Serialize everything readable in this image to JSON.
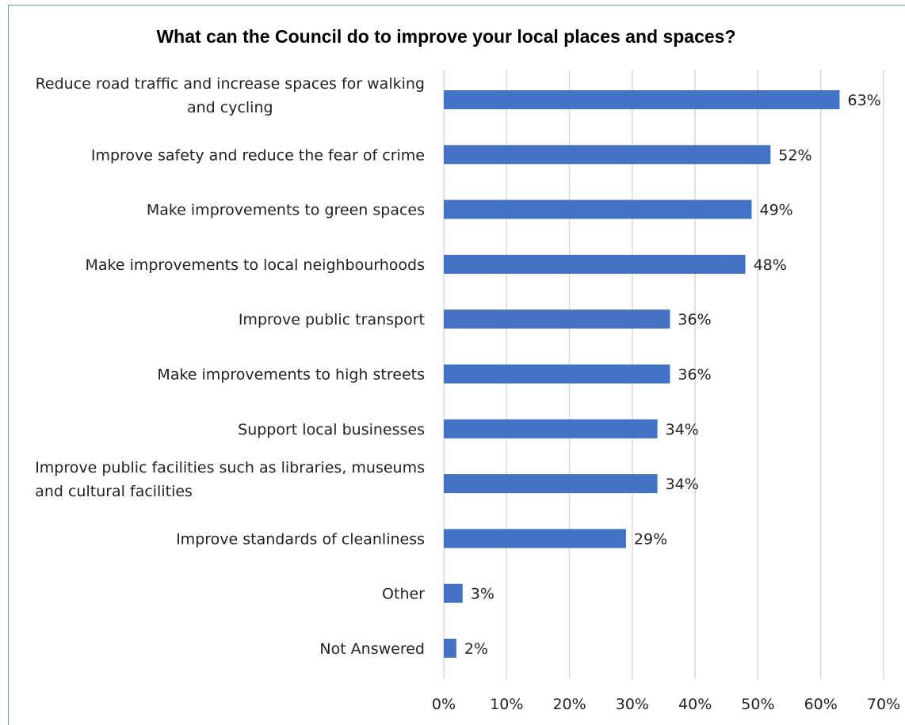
{
  "chart_data": {
    "type": "bar",
    "orientation": "horizontal",
    "title": "What can the Council do to improve your local places and spaces?",
    "categories": [
      "Reduce road traffic and increase spaces for walking and cycling",
      "Improve safety and reduce the fear of crime",
      "Make improvements to green spaces",
      "Make improvements to local neighbourhoods",
      "Improve public transport",
      "Make improvements to high streets",
      "Support local businesses",
      "Improve public facilities such as libraries, museums and cultural facilities",
      "Improve standards of cleanliness",
      "Other",
      "Not Answered"
    ],
    "category_lines": [
      [
        "Reduce road traffic and increase spaces for walking",
        "and cycling"
      ],
      [
        "Improve safety and reduce the fear of crime"
      ],
      [
        "Make improvements to green spaces"
      ],
      [
        "Make improvements to local neighbourhoods"
      ],
      [
        "Improve public transport"
      ],
      [
        "Make improvements to high streets"
      ],
      [
        "Support local businesses"
      ],
      [
        "Improve public facilities such as libraries, museums",
        "and cultural facilities"
      ],
      [
        "Improve standards of cleanliness"
      ],
      [
        "Other"
      ],
      [
        "Not Answered"
      ]
    ],
    "values": [
      63,
      52,
      49,
      48,
      36,
      36,
      34,
      34,
      29,
      3,
      2
    ],
    "data_labels": [
      "63%",
      "52%",
      "49%",
      "48%",
      "36%",
      "36%",
      "34%",
      "34%",
      "29%",
      "3%",
      "2%"
    ],
    "xlim": [
      0,
      70
    ],
    "xticks": [
      0,
      10,
      20,
      30,
      40,
      50,
      60,
      70
    ],
    "xtick_labels": [
      "0%",
      "10%",
      "20%",
      "30%",
      "40%",
      "50%",
      "60%",
      "70%"
    ],
    "xlabel": "",
    "ylabel": "",
    "grid": "vertical",
    "legend": "none",
    "colors": {
      "bar": "#4472c4",
      "grid": "#d9d9d9",
      "frame": "#5b9bd5"
    }
  }
}
